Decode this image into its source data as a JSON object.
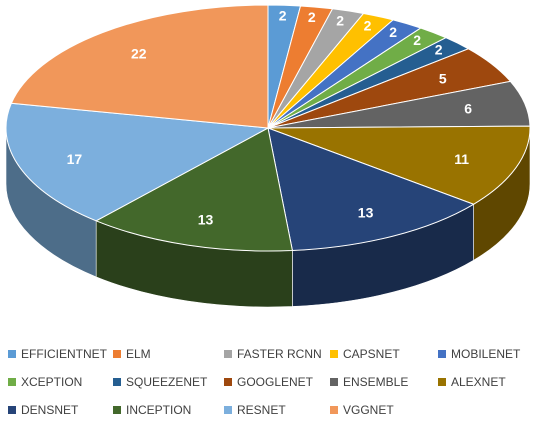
{
  "chart_data": {
    "type": "pie",
    "style": "3d",
    "categories": [
      "EFFICIENTNET",
      "ELM",
      "FASTER RCNN",
      "CAPSNET",
      "MOBILENET",
      "XCEPTION",
      "SQUEEZENET",
      "GOOGLENET",
      "ENSEMBLE",
      "ALEXNET",
      "DENSNET",
      "INCEPTION",
      "RESNET",
      "VGGNET"
    ],
    "values": [
      2,
      2,
      2,
      2,
      2,
      2,
      2,
      5,
      6,
      11,
      13,
      13,
      17,
      22
    ],
    "colors": [
      "#5B9BD5",
      "#ED7D31",
      "#A5A5A5",
      "#FFC000",
      "#4472C4",
      "#70AD47",
      "#255E91",
      "#9E480E",
      "#636363",
      "#997300",
      "#264478",
      "#43682B",
      "#7CAFDD",
      "#F1975A"
    ],
    "data_labels": [
      "2",
      "2",
      "2",
      "2",
      "2",
      "2",
      "2",
      "5",
      "6",
      "11",
      "13",
      "13",
      "17",
      "22"
    ],
    "label_colors": [
      "#ffffff",
      "#ffffff",
      "#ffffff",
      "#ffffff",
      "#ffffff",
      "#ffffff",
      "#ffffff",
      "#ffffff",
      "#ffffff",
      "#ffffff",
      "#ffffff",
      "#ffffff",
      "#ffffff",
      "#ffffff"
    ],
    "legend_position": "bottom",
    "start_angle": "12 o'clock",
    "direction": "clockwise"
  }
}
